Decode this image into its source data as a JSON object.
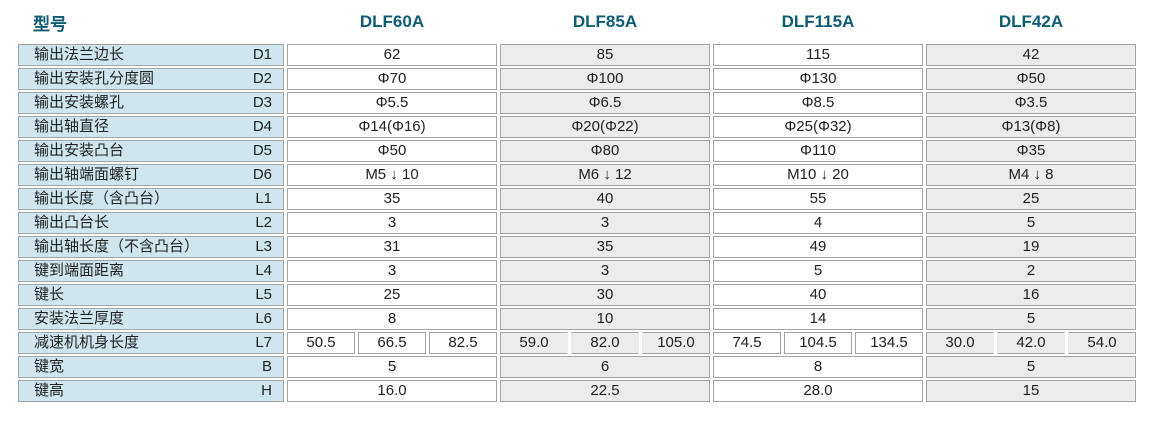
{
  "header": {
    "model_label": "型号",
    "models": [
      "DLF60A",
      "DLF85A",
      "DLF115A",
      "DLF42A"
    ]
  },
  "colors": {
    "accent_teal": "#0d5c74",
    "label_cell_bg": "#cfe6ee",
    "gray_column_bg": "#ececec",
    "white_column_bg": "#ffffff",
    "cell_border": "#a3a3a3",
    "value_text": "#222222"
  },
  "table": {
    "rows": [
      {
        "label": "输出法兰边长",
        "code": "D1",
        "values": [
          "62",
          "85",
          "115",
          "42"
        ]
      },
      {
        "label": "输出安装孔分度圆",
        "code": "D2",
        "values": [
          "Φ70",
          "Φ100",
          "Φ130",
          "Φ50"
        ]
      },
      {
        "label": "输出安装螺孔",
        "code": "D3",
        "values": [
          "Φ5.5",
          "Φ6.5",
          "Φ8.5",
          "Φ3.5"
        ]
      },
      {
        "label": "输出轴直径",
        "code": "D4",
        "values": [
          "Φ14(Φ16)",
          "Φ20(Φ22)",
          "Φ25(Φ32)",
          "Φ13(Φ8)"
        ]
      },
      {
        "label": "输出安装凸台",
        "code": "D5",
        "values": [
          "Φ50",
          "Φ80",
          "Φ110",
          "Φ35"
        ]
      },
      {
        "label": "输出轴端面螺钉",
        "code": "D6",
        "values": [
          "M5 ↓ 10",
          "M6 ↓ 12",
          "M10 ↓ 20",
          "M4 ↓ 8"
        ]
      },
      {
        "label": "输出长度（含凸台）",
        "code": "L1",
        "values": [
          "35",
          "40",
          "55",
          "25"
        ]
      },
      {
        "label": "输出凸台长",
        "code": "L2",
        "values": [
          "3",
          "3",
          "4",
          "5"
        ]
      },
      {
        "label": "输出轴长度（不含凸台）",
        "code": "L3",
        "values": [
          "31",
          "35",
          "49",
          "19"
        ]
      },
      {
        "label": "键到端面距离",
        "code": "L4",
        "values": [
          "3",
          "3",
          "5",
          "2"
        ]
      },
      {
        "label": "键长",
        "code": "L5",
        "values": [
          "25",
          "30",
          "40",
          "16"
        ]
      },
      {
        "label": "安装法兰厚度",
        "code": "L6",
        "values": [
          "8",
          "10",
          "14",
          "5"
        ]
      },
      {
        "label": "减速机机身长度",
        "code": "L7",
        "values": [
          [
            "50.5",
            "66.5",
            "82.5"
          ],
          [
            "59.0",
            "82.0",
            "105.0"
          ],
          [
            "74.5",
            "104.5",
            "134.5"
          ],
          [
            "30.0",
            "42.0",
            "54.0"
          ]
        ]
      },
      {
        "label": "键宽",
        "code": "B",
        "values": [
          "5",
          "6",
          "8",
          "5"
        ]
      },
      {
        "label": "键高",
        "code": "H",
        "values": [
          "16.0",
          "22.5",
          "28.0",
          "15"
        ]
      }
    ]
  }
}
